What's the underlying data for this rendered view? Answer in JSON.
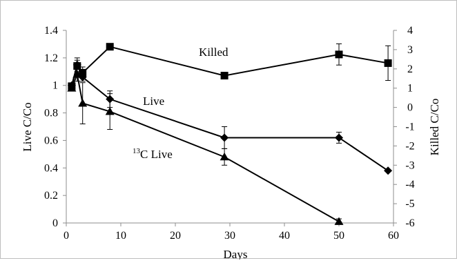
{
  "chart_data": {
    "type": "line",
    "title": "",
    "xlabel": "Days",
    "ylabel_left": "Live C/Co",
    "ylabel_right": "Killed C/Co",
    "xlim": [
      0,
      60
    ],
    "ylim_left": [
      0,
      1.4
    ],
    "ylim_right": [
      -6,
      4
    ],
    "x_ticks": [
      "0",
      "10",
      "20",
      "30",
      "40",
      "50",
      "60"
    ],
    "y_left_ticks": [
      "0",
      "0.2",
      "0.4",
      "0.6",
      "0.8",
      "1",
      "1.2",
      "1.4"
    ],
    "y_right_ticks": [
      "-6",
      "-5",
      "-4",
      "-3",
      "-2",
      "-1",
      "0",
      "1",
      "2",
      "3",
      "4"
    ],
    "grid": false,
    "series": [
      {
        "name": "Killed",
        "axis": "right",
        "marker": "square",
        "x": [
          1,
          2,
          3,
          8,
          29,
          50,
          59
        ],
        "y": [
          1.1,
          2.15,
          1.8,
          3.15,
          1.65,
          2.75,
          2.3
        ],
        "err": [
          0.15,
          0.3,
          0.3,
          0,
          0.1,
          0.55,
          0.9
        ]
      },
      {
        "name": "Live",
        "axis": "left",
        "marker": "diamond",
        "x": [
          1,
          2,
          3,
          8,
          29,
          50,
          59
        ],
        "y": [
          1.0,
          1.15,
          1.06,
          0.9,
          0.62,
          0.62,
          0.38
        ],
        "err": [
          0.01,
          0.05,
          0.03,
          0.06,
          0.08,
          0.04,
          0
        ]
      },
      {
        "name": "13C Live",
        "axis": "left",
        "marker": "triangle",
        "x": [
          1,
          2,
          3,
          8,
          29,
          50
        ],
        "y": [
          0.98,
          1.08,
          0.87,
          0.81,
          0.48,
          0.01
        ],
        "err": [
          0.02,
          0.05,
          0.15,
          0.13,
          0.06,
          0.02
        ]
      }
    ]
  },
  "labels": {
    "killed": "Killed",
    "live": "Live",
    "c13_live_sup": "13",
    "c13_live_text": "C Live"
  }
}
